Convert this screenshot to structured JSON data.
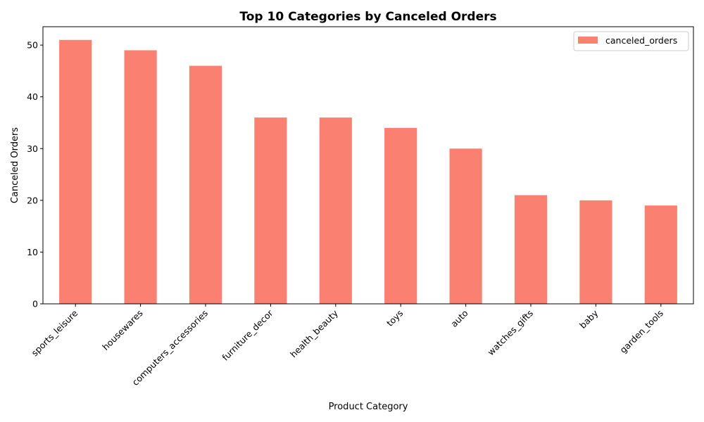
{
  "chart_data": {
    "type": "bar",
    "title": "Top 10 Categories by Canceled Orders",
    "xlabel": "Product Category",
    "ylabel": "Canceled Orders",
    "categories": [
      "sports_leisure",
      "housewares",
      "computers_accessories",
      "furniture_decor",
      "health_beauty",
      "toys",
      "auto",
      "watches_gifts",
      "baby",
      "garden_tools"
    ],
    "series": [
      {
        "name": "canceled_orders",
        "values": [
          51,
          49,
          46,
          36,
          36,
          34,
          30,
          21,
          20,
          19
        ],
        "color": "#fa8072"
      }
    ],
    "ylim": [
      0,
      53.55
    ],
    "yticks": [
      0,
      10,
      20,
      30,
      40,
      50
    ],
    "grid": false,
    "legend_position": "top-right"
  }
}
